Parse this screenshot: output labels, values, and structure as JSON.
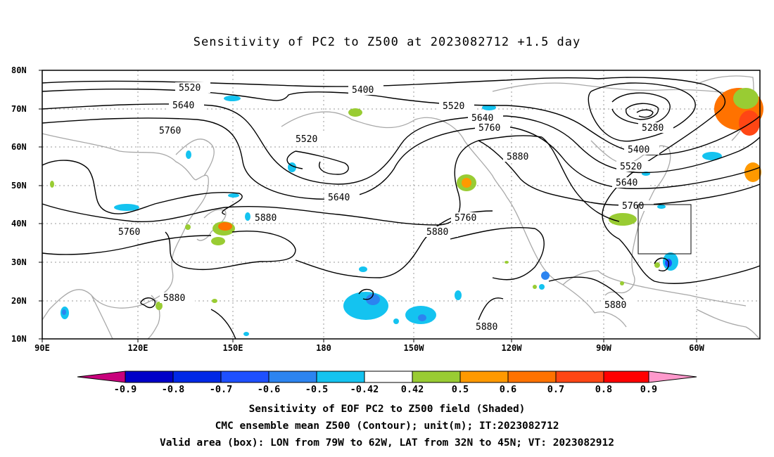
{
  "title": "Sensitivity of PC2 to Z500 at 2023082712 +1.5 day",
  "lat_labels": [
    "80N",
    "70N",
    "60N",
    "50N",
    "40N",
    "30N",
    "20N",
    "10N"
  ],
  "lon_labels": [
    "90E",
    "120E",
    "150E",
    "180",
    "150W",
    "120W",
    "90W",
    "60W"
  ],
  "contour_labels": [
    {
      "text": "5520"
    },
    {
      "text": "5400"
    },
    {
      "text": "5640"
    },
    {
      "text": "5520"
    },
    {
      "text": "5640"
    },
    {
      "text": "5760"
    },
    {
      "text": "5760"
    },
    {
      "text": "5520"
    },
    {
      "text": "5280"
    },
    {
      "text": "5400"
    },
    {
      "text": "5880"
    },
    {
      "text": "5520"
    },
    {
      "text": "5640"
    },
    {
      "text": "5640"
    },
    {
      "text": "5760"
    },
    {
      "text": "5880"
    },
    {
      "text": "5760"
    },
    {
      "text": "5880"
    },
    {
      "text": "5760"
    },
    {
      "text": "5880"
    },
    {
      "text": "5880"
    },
    {
      "text": "5880"
    }
  ],
  "colorbar": {
    "ticks": [
      "-0.9",
      "-0.8",
      "-0.7",
      "-0.6",
      "-0.5",
      "-0.42",
      "0.42",
      "0.5",
      "0.6",
      "0.7",
      "0.8",
      "0.9"
    ],
    "colors": [
      "#c8007c",
      "#0000c8",
      "#0028e6",
      "#1e50ff",
      "#2c84f0",
      "#14c3f0",
      "#ffffff",
      "#99cc33",
      "#ff9900",
      "#ff7200",
      "#ff4614",
      "#ff0000",
      "#ff99cc"
    ]
  },
  "captions": [
    "Sensitivity of EOF PC2 to Z500 field (Shaded)",
    "CMC ensemble mean Z500 (Contour); unit(m); IT:2023082712",
    "Valid area (box): LON from 79W to 62W, LAT from 32N to 45N; VT: 2023082912"
  ]
}
